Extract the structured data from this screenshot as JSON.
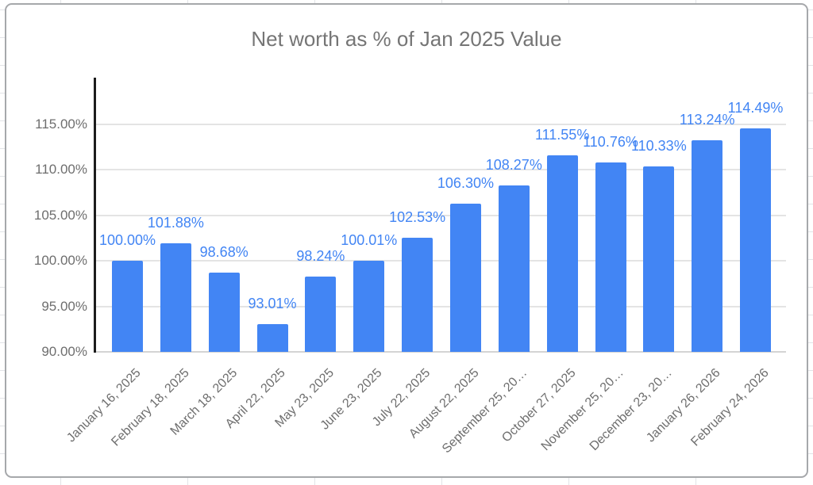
{
  "chart_data": {
    "type": "bar",
    "title": "Net worth as % of Jan 2025 Value",
    "categories": [
      "January 16, 2025",
      "February 18, 2025",
      "March 18, 2025",
      "April 22, 2025",
      "May 23, 2025",
      "June 23, 2025",
      "July 22, 2025",
      "August 22, 2025",
      "September 25, 20…",
      "October 27, 2025",
      "November 25, 20…",
      "December 23, 20…",
      "January 26, 2026",
      "February 24, 2026"
    ],
    "values": [
      100.0,
      101.88,
      98.68,
      93.01,
      98.24,
      100.01,
      102.53,
      106.3,
      108.27,
      111.55,
      110.76,
      110.33,
      113.24,
      114.49
    ],
    "data_labels": [
      "100.00%",
      "101.88%",
      "98.68%",
      "93.01%",
      "98.24%",
      "100.01%",
      "102.53%",
      "106.30%",
      "108.27%",
      "111.55%",
      "110.76%",
      "110.33%",
      "113.24%",
      "114.49%"
    ],
    "y_ticks": [
      {
        "label": "115.00%",
        "value": 115
      },
      {
        "label": "110.00%",
        "value": 110
      },
      {
        "label": "105.00%",
        "value": 105
      },
      {
        "label": "100.00%",
        "value": 100
      },
      {
        "label": "95.00%",
        "value": 95
      },
      {
        "label": "90.00%",
        "value": 90
      }
    ],
    "ylim": [
      90,
      120
    ],
    "xlabel": "",
    "ylabel": "",
    "legend": "none",
    "grid": true,
    "bar_color": "#4285F4",
    "data_label_color": "#4285F4",
    "axis_text_color": "#6e6e6e",
    "title_color": "#757575",
    "gridline_color": "#e4e4e4"
  }
}
